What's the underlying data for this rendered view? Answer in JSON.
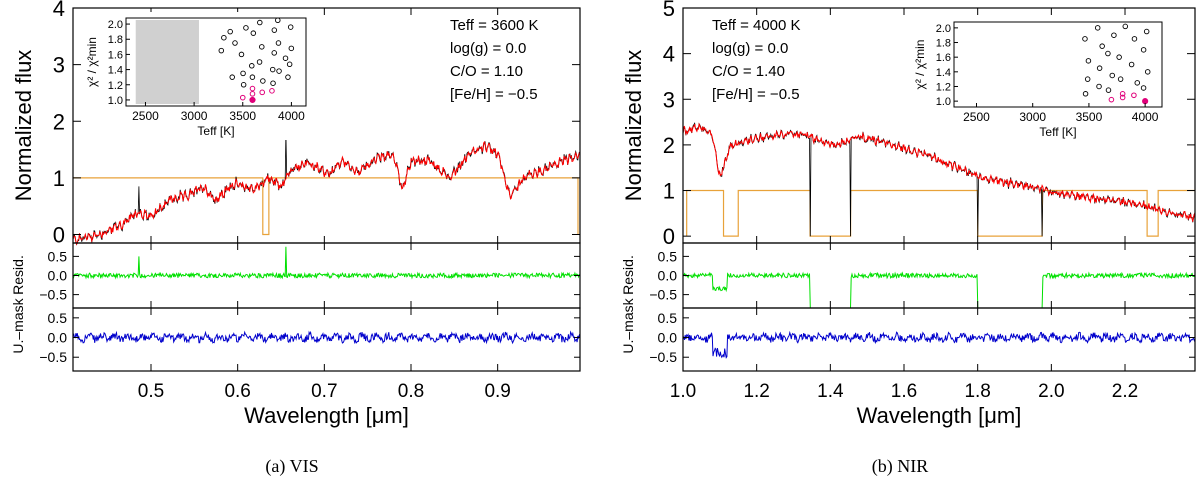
{
  "captions": [
    "(a) VIS",
    "(b) NIR"
  ],
  "colors": {
    "observed": "#000000",
    "model": "#ff0000",
    "mask": "#e8a23a",
    "resid": "#00e000",
    "umask_resid": "#0000cc",
    "inset_best": "#e0007a",
    "inset_excluded": "#d0d0d0"
  },
  "chart_data": [
    {
      "type": "line",
      "panel": "VIS",
      "xlabel": "Wavelength [μm]",
      "xlim": [
        0.41,
        0.995
      ],
      "xticks": [
        0.5,
        0.6,
        0.7,
        0.8,
        0.9
      ],
      "xticklabels": [
        "0.5",
        "0.6",
        "0.7",
        "0.8",
        "0.9"
      ],
      "flux": {
        "ylabel": "Normalized flux",
        "ylim": [
          -0.15,
          4
        ],
        "yticks": [
          0,
          1,
          2,
          3,
          4
        ],
        "model_x": [
          0.41,
          0.44,
          0.47,
          0.485,
          0.5,
          0.52,
          0.545,
          0.56,
          0.575,
          0.595,
          0.62,
          0.635,
          0.65,
          0.66,
          0.675,
          0.69,
          0.705,
          0.72,
          0.74,
          0.76,
          0.78,
          0.79,
          0.8,
          0.82,
          0.845,
          0.865,
          0.885,
          0.9,
          0.915,
          0.93,
          0.955,
          0.975,
          0.995
        ],
        "model_y": [
          -0.1,
          0.0,
          0.2,
          0.4,
          0.3,
          0.6,
          0.7,
          0.85,
          0.6,
          0.9,
          0.8,
          1.0,
          0.85,
          1.1,
          1.25,
          1.2,
          1.05,
          1.3,
          1.1,
          1.35,
          1.4,
          0.8,
          1.3,
          1.3,
          1.0,
          1.4,
          1.55,
          1.45,
          0.65,
          1.0,
          1.15,
          1.3,
          1.4
        ],
        "observed_spikes": [
          [
            0.486,
            0.85
          ],
          [
            0.656,
            1.8
          ]
        ],
        "mask_level": 1.0,
        "mask_gaps": [
          [
            0.629,
            0.636
          ]
        ]
      },
      "resid": {
        "ylabel": "Resid.",
        "ylim": [
          -0.85,
          0.85
        ],
        "yticks": [
          -0.5,
          0,
          0.5
        ],
        "yticklabels": [
          "−0.5",
          "0.0",
          "0.5"
        ],
        "spikes": [
          [
            0.486,
            0.5
          ],
          [
            0.656,
            0.75
          ]
        ]
      },
      "umask": {
        "ylabel": "U.–mask",
        "ylim": [
          -0.85,
          0.75
        ],
        "yticks": [
          -0.5,
          0,
          0.5
        ],
        "yticklabels": [
          "−0.5",
          "0.0",
          "0.5"
        ]
      },
      "params": [
        "Teff = 3600 K",
        "log(g) = 0.0",
        "C/O = 1.10",
        "[Fe/H] = −0.5"
      ],
      "inset": {
        "xlabel": "Teff [K]",
        "ylabel": "χ² / χ²min",
        "xlim": [
          2300,
          4150
        ],
        "ylim": [
          0.92,
          2.08
        ],
        "xticks": [
          2500,
          3000,
          3500,
          4000
        ],
        "yticks": [
          1.0,
          1.2,
          1.4,
          1.6,
          1.8,
          2.0
        ],
        "excluded_band": [
          2400,
          3050
        ],
        "best_fit": [
          3600,
          1.0
        ],
        "near_fit": [
          [
            3500,
            1.03
          ],
          [
            3600,
            1.08
          ],
          [
            3700,
            1.1
          ],
          [
            3800,
            1.12
          ],
          [
            3600,
            1.15
          ]
        ],
        "points": [
          [
            3300,
            1.82
          ],
          [
            3300,
            1.65
          ],
          [
            3400,
            1.9
          ],
          [
            3400,
            1.75
          ],
          [
            3400,
            1.3
          ],
          [
            3500,
            1.95
          ],
          [
            3500,
            1.6
          ],
          [
            3500,
            1.35
          ],
          [
            3500,
            1.2
          ],
          [
            3600,
            1.88
          ],
          [
            3600,
            1.45
          ],
          [
            3600,
            1.3
          ],
          [
            3700,
            2.02
          ],
          [
            3700,
            1.7
          ],
          [
            3700,
            1.5
          ],
          [
            3700,
            1.25
          ],
          [
            3800,
            1.92
          ],
          [
            3800,
            1.62
          ],
          [
            3800,
            1.4
          ],
          [
            3800,
            1.22
          ],
          [
            3900,
            2.05
          ],
          [
            3900,
            1.75
          ],
          [
            3900,
            1.55
          ],
          [
            3900,
            1.38
          ],
          [
            4000,
            1.96
          ],
          [
            4000,
            1.68
          ],
          [
            4000,
            1.47
          ],
          [
            4000,
            1.3
          ]
        ]
      }
    },
    {
      "type": "line",
      "panel": "NIR",
      "xlabel": "Wavelength [μm]",
      "xlim": [
        1.0,
        2.39
      ],
      "xticks": [
        1.0,
        1.2,
        1.4,
        1.6,
        1.8,
        2.0,
        2.2
      ],
      "xticklabels": [
        "1.0",
        "1.2",
        "1.4",
        "1.6",
        "1.8",
        "2.0",
        "2.2"
      ],
      "flux": {
        "ylabel": "Normalized flux",
        "ylim": [
          -0.15,
          5
        ],
        "yticks": [
          0,
          1,
          2,
          3,
          4,
          5
        ],
        "model_x": [
          1.0,
          1.05,
          1.08,
          1.1,
          1.13,
          1.2,
          1.3,
          1.345,
          1.36,
          1.42,
          1.45,
          1.47,
          1.55,
          1.65,
          1.75,
          1.8,
          1.9,
          1.97,
          2.0,
          2.1,
          2.2,
          2.29,
          2.33,
          2.39
        ],
        "model_y": [
          2.3,
          2.4,
          2.2,
          1.3,
          2.0,
          2.15,
          2.25,
          2.2,
          2.1,
          2.0,
          2.1,
          2.2,
          2.05,
          1.8,
          1.5,
          1.3,
          1.15,
          1.05,
          0.95,
          0.85,
          0.75,
          0.6,
          0.5,
          0.4
        ],
        "observed_drops": [
          1.345,
          1.455,
          1.8,
          1.975
        ],
        "mask_level": 1.0,
        "mask_gaps": [
          [
            1.11,
            1.15
          ],
          [
            1.345,
            1.455
          ],
          [
            1.8,
            1.975
          ],
          [
            2.26,
            2.29
          ]
        ],
        "mask_edge": [
          1.01,
          2.39
        ]
      },
      "resid": {
        "ylabel": "Resid.",
        "ylim": [
          -0.85,
          0.85
        ],
        "yticks": [
          -0.5,
          0,
          0.5
        ],
        "yticklabels": [
          "−0.5",
          "0.0",
          "0.5"
        ],
        "masked": [
          [
            1.345,
            1.455
          ],
          [
            1.8,
            1.975
          ]
        ]
      },
      "umask": {
        "ylabel": "U.–mask",
        "ylim": [
          -0.85,
          0.75
        ],
        "yticks": [
          -0.5,
          0,
          0.5
        ],
        "yticklabels": [
          "−0.5",
          "0.0",
          "0.5"
        ]
      },
      "params": [
        "Teff = 4000 K",
        "log(g) = 0.0",
        "C/O = 1.40",
        "[Fe/H] = −0.5"
      ],
      "inset": {
        "xlabel": "Teff [K]",
        "ylabel": "χ² / χ²min",
        "xlim": [
          2300,
          4150
        ],
        "ylim": [
          0.92,
          2.08
        ],
        "xticks": [
          2500,
          3000,
          3500,
          4000
        ],
        "yticks": [
          1.0,
          1.2,
          1.4,
          1.6,
          1.8,
          2.0
        ],
        "best_fit": [
          4000,
          1.0
        ],
        "near_fit": [
          [
            3700,
            1.02
          ],
          [
            3800,
            1.05
          ],
          [
            3900,
            1.08
          ],
          [
            3800,
            1.1
          ]
        ],
        "points": [
          [
            3500,
            1.85
          ],
          [
            3500,
            1.55
          ],
          [
            3500,
            1.3
          ],
          [
            3500,
            1.1
          ],
          [
            3600,
            2.0
          ],
          [
            3600,
            1.75
          ],
          [
            3600,
            1.45
          ],
          [
            3600,
            1.2
          ],
          [
            3700,
            1.9
          ],
          [
            3700,
            1.65
          ],
          [
            3700,
            1.35
          ],
          [
            3700,
            1.15
          ],
          [
            3800,
            2.02
          ],
          [
            3800,
            1.6
          ],
          [
            3800,
            1.3
          ],
          [
            3900,
            1.85
          ],
          [
            3900,
            1.5
          ],
          [
            3900,
            1.25
          ],
          [
            4000,
            1.95
          ],
          [
            4000,
            1.7
          ],
          [
            4000,
            1.4
          ],
          [
            4000,
            1.18
          ]
        ]
      }
    }
  ]
}
